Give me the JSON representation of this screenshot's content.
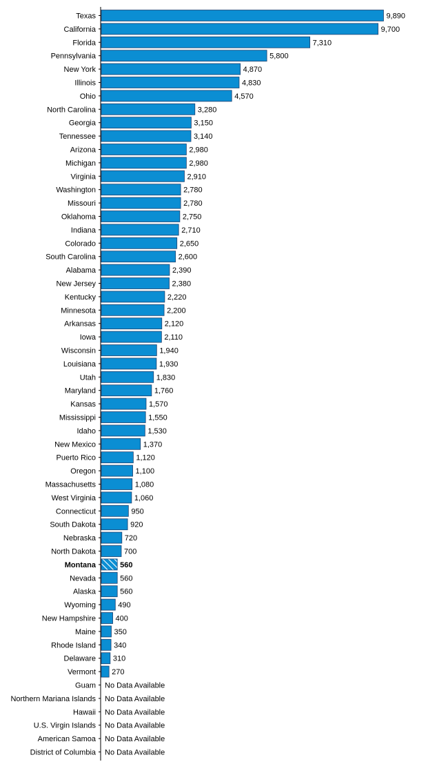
{
  "colors": {
    "bar": "#0b8ed3",
    "bar_stroke": "#1f3f6e",
    "highlight_hatch": "#ffffff",
    "axis": "#000000",
    "text": "#000000"
  },
  "no_data_label": "No Data Available",
  "chart_data": {
    "type": "bar",
    "orientation": "horizontal",
    "title": "",
    "xlabel": "",
    "ylabel": "",
    "highlight": "Montana",
    "highlight_style": "hatched bar, bold label",
    "xlim": [
      0,
      10000
    ],
    "grid": false,
    "value_labels": true,
    "categories": [
      "Texas",
      "California",
      "Florida",
      "Pennsylvania",
      "New York",
      "Illinois",
      "Ohio",
      "North Carolina",
      "Georgia",
      "Tennessee",
      "Arizona",
      "Michigan",
      "Virginia",
      "Washington",
      "Missouri",
      "Oklahoma",
      "Indiana",
      "Colorado",
      "South Carolina",
      "Alabama",
      "New Jersey",
      "Kentucky",
      "Minnesota",
      "Arkansas",
      "Iowa",
      "Wisconsin",
      "Louisiana",
      "Utah",
      "Maryland",
      "Kansas",
      "Mississippi",
      "Idaho",
      "New Mexico",
      "Puerto Rico",
      "Oregon",
      "Massachusetts",
      "West Virginia",
      "Connecticut",
      "South Dakota",
      "Nebraska",
      "North Dakota",
      "Montana",
      "Nevada",
      "Alaska",
      "Wyoming",
      "New Hampshire",
      "Maine",
      "Rhode Island",
      "Delaware",
      "Vermont",
      "Guam",
      "Northern Mariana Islands",
      "Hawaii",
      "U.S. Virgin Islands",
      "American Samoa",
      "District of Columbia"
    ],
    "values": [
      9890,
      9700,
      7310,
      5800,
      4870,
      4830,
      4570,
      3280,
      3150,
      3140,
      2980,
      2980,
      2910,
      2780,
      2780,
      2750,
      2710,
      2650,
      2600,
      2390,
      2380,
      2220,
      2200,
      2120,
      2110,
      1940,
      1930,
      1830,
      1760,
      1570,
      1550,
      1530,
      1370,
      1120,
      1100,
      1080,
      1060,
      950,
      920,
      720,
      700,
      560,
      560,
      560,
      490,
      400,
      350,
      340,
      310,
      270,
      null,
      null,
      null,
      null,
      null,
      null
    ],
    "value_labels_text": [
      "9,890",
      "9,700",
      "7,310",
      "5,800",
      "4,870",
      "4,830",
      "4,570",
      "3,280",
      "3,150",
      "3,140",
      "2,980",
      "2,980",
      "2,910",
      "2,780",
      "2,780",
      "2,750",
      "2,710",
      "2,650",
      "2,600",
      "2,390",
      "2,380",
      "2,220",
      "2,200",
      "2,120",
      "2,110",
      "1,940",
      "1,930",
      "1,830",
      "1,760",
      "1,570",
      "1,550",
      "1,530",
      "1,370",
      "1,120",
      "1,100",
      "1,080",
      "1,060",
      "950",
      "920",
      "720",
      "700",
      "560",
      "560",
      "560",
      "490",
      "400",
      "350",
      "340",
      "310",
      "270",
      "No Data Available",
      "No Data Available",
      "No Data Available",
      "No Data Available",
      "No Data Available",
      "No Data Available"
    ]
  }
}
